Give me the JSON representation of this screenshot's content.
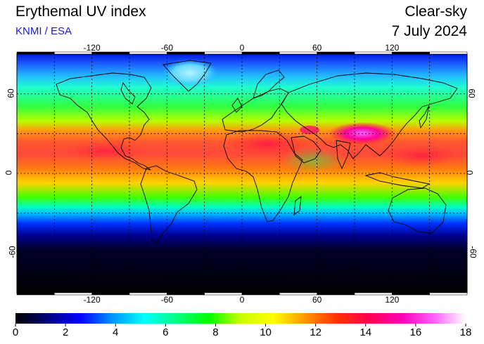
{
  "header": {
    "title": "Erythemal UV index",
    "subtitle": "KNMI / ESA",
    "mode": "Clear-sky",
    "date": "7 July 2024"
  },
  "axes": {
    "lon_ticks": [
      {
        "value": -120,
        "label": "-120"
      },
      {
        "value": -60,
        "label": "-60"
      },
      {
        "value": 0,
        "label": "0"
      },
      {
        "value": 60,
        "label": "60"
      },
      {
        "value": 120,
        "label": "120"
      }
    ],
    "lat_ticks": [
      {
        "value": 60,
        "label": "60"
      },
      {
        "value": 0,
        "label": "0"
      },
      {
        "value": -60,
        "label": "-60"
      }
    ],
    "lon_range": [
      -180,
      180
    ],
    "lat_range": [
      -90,
      90
    ],
    "gridlines": "dotted, every 30 degrees"
  },
  "colorbar": {
    "labels": [
      "0",
      "2",
      "4",
      "6",
      "8",
      "10",
      "12",
      "14",
      "16",
      "18"
    ],
    "min": 0,
    "max": 18,
    "stops": [
      "#000000",
      "#00007a",
      "#0000ff",
      "#0090ff",
      "#00ffff",
      "#00ff80",
      "#00ff00",
      "#c8ff00",
      "#ffff00",
      "#ff9600",
      "#ff3000",
      "#ff0050",
      "#ff00b4",
      "#ff60ff",
      "#ffffff"
    ]
  }
}
